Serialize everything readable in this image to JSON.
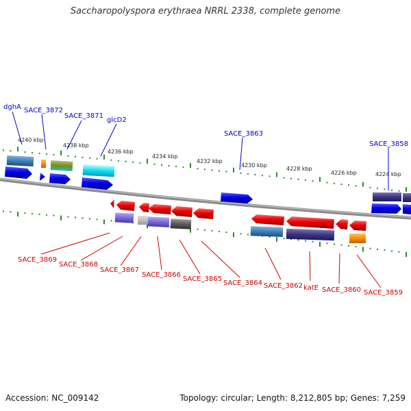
{
  "title": "Saccharopolyspora erythraea NRRL 2338, complete genome",
  "footer": {
    "accession": "Accession: NC_009142",
    "topology": "Topology: circular; Length: 8,212,805 bp; Genes: 7,259"
  },
  "colors": {
    "forward_label": "#0000cc",
    "reverse_label": "#cc0000",
    "backbone": "#8a8a8a",
    "tick": "#2a8a2a"
  },
  "kbp_ticks": [
    "4240 kbp",
    "4238 kbp",
    "4236 kbp",
    "4234 kbp",
    "4232 kbp",
    "4230 kbp",
    "4228 kbp",
    "4226 kbp",
    "4224 kbp"
  ],
  "top_genes": [
    "dghA",
    "SACE_3872",
    "SACE_3871",
    "glcD2",
    "SACE_3863",
    "SACE_3858"
  ],
  "bottom_genes": [
    "SACE_3869",
    "SACE_3868",
    "SACE_3867",
    "SACE_3866",
    "SACE_3865",
    "SACE_3864",
    "SACE_3862",
    "katE",
    "SACE_3860",
    "SACE_3859"
  ]
}
